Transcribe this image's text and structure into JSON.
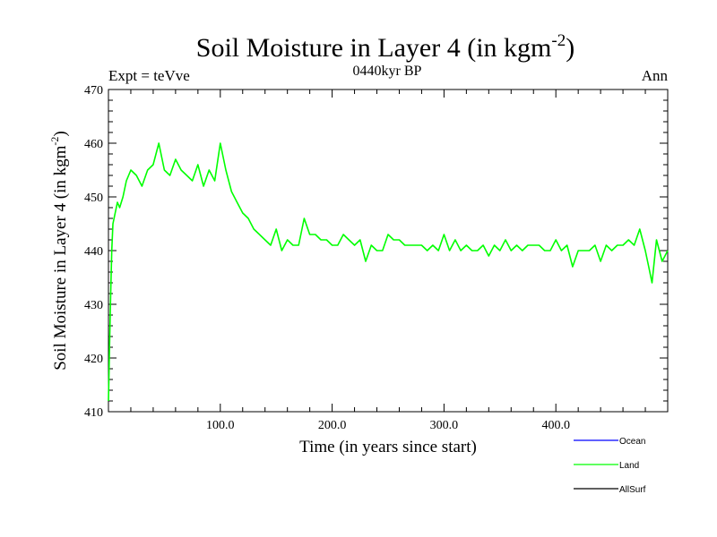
{
  "chart_data": {
    "type": "line",
    "title": "Soil Moisture in Layer 4 (in kgm",
    "title_sup": "-2",
    "title_close": ")",
    "subtitle_left": "Expt = teVve",
    "subtitle_center": "0440kyr BP",
    "subtitle_right": "Ann",
    "xlabel": "Time (in years since start)",
    "ylabel": "Soil Moisture in Layer 4 (in kgm",
    "ylabel_sup": "-2",
    "ylabel_close": ")",
    "xlim": [
      0,
      500
    ],
    "ylim": [
      410,
      470
    ],
    "xticks": [
      100,
      200,
      300,
      400
    ],
    "xtick_labels": [
      "100.0",
      "200.0",
      "300.0",
      "400.0"
    ],
    "yticks": [
      410,
      420,
      430,
      440,
      450,
      460,
      470
    ],
    "ytick_labels": [
      "410",
      "420",
      "430",
      "440",
      "450",
      "460",
      "470"
    ],
    "legend": [
      {
        "name": "Ocean",
        "color": "#0000ff"
      },
      {
        "name": "Land",
        "color": "#00ff00"
      },
      {
        "name": "AllSurf",
        "color": "#000000"
      }
    ],
    "series": [
      {
        "name": "Land",
        "color": "#00ff00",
        "x": [
          0,
          1,
          2,
          3,
          4,
          6,
          8,
          10,
          13,
          16,
          20,
          25,
          30,
          35,
          40,
          45,
          50,
          55,
          60,
          65,
          70,
          75,
          80,
          85,
          90,
          95,
          100,
          105,
          110,
          115,
          120,
          125,
          130,
          135,
          140,
          145,
          150,
          155,
          160,
          165,
          170,
          175,
          180,
          185,
          190,
          195,
          200,
          205,
          210,
          215,
          220,
          225,
          230,
          235,
          240,
          245,
          250,
          255,
          260,
          265,
          270,
          275,
          280,
          285,
          290,
          295,
          300,
          305,
          310,
          315,
          320,
          325,
          330,
          335,
          340,
          345,
          350,
          355,
          360,
          365,
          370,
          375,
          380,
          385,
          390,
          395,
          400,
          405,
          410,
          415,
          420,
          425,
          430,
          435,
          440,
          445,
          450,
          455,
          460,
          465,
          470,
          475,
          480,
          483,
          486,
          490,
          495,
          500
        ],
        "values": [
          412,
          422,
          432,
          440,
          445,
          447,
          449,
          448,
          450,
          453,
          455,
          454,
          452,
          455,
          456,
          460,
          455,
          454,
          457,
          455,
          454,
          453,
          456,
          452,
          455,
          453,
          460,
          455,
          451,
          449,
          447,
          446,
          444,
          443,
          442,
          441,
          444,
          440,
          442,
          441,
          441,
          446,
          443,
          443,
          442,
          442,
          441,
          441,
          443,
          442,
          441,
          442,
          438,
          441,
          440,
          440,
          443,
          442,
          442,
          441,
          441,
          441,
          441,
          440,
          441,
          440,
          443,
          440,
          442,
          440,
          441,
          440,
          440,
          441,
          439,
          441,
          440,
          442,
          440,
          441,
          440,
          441,
          441,
          441,
          440,
          440,
          442,
          440,
          441,
          437,
          440,
          440,
          440,
          441,
          438,
          441,
          440,
          441,
          441,
          442,
          441,
          444,
          440,
          437,
          434,
          442,
          438,
          440
        ]
      }
    ]
  }
}
